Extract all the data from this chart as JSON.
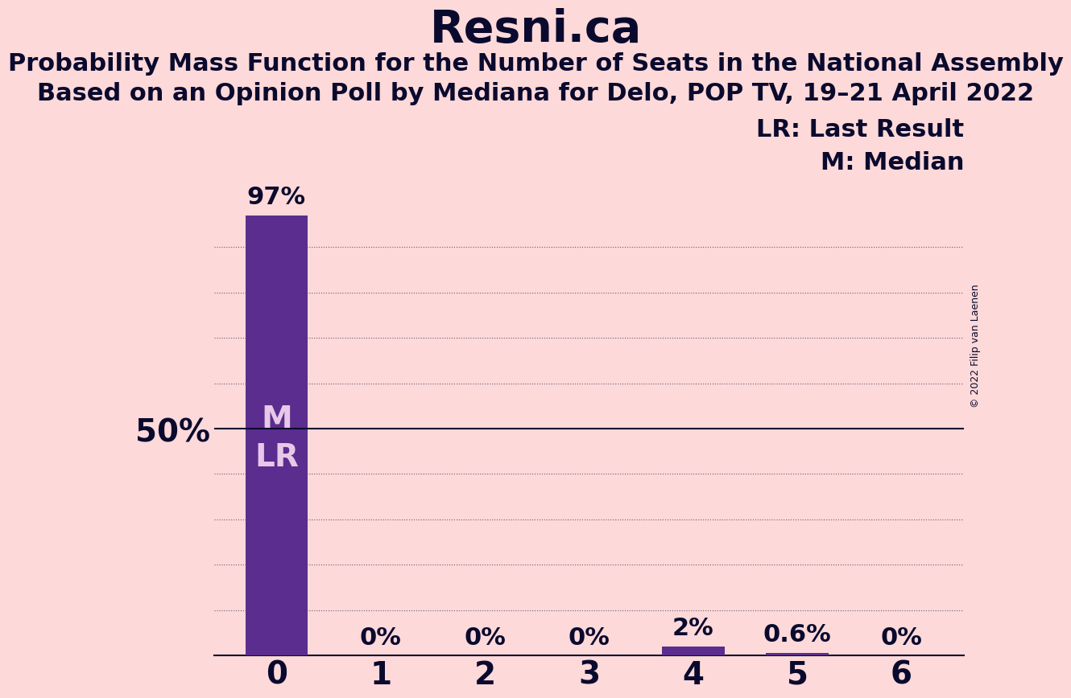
{
  "title": "Resni.ca",
  "subtitle1": "Probability Mass Function for the Number of Seats in the National Assembly",
  "subtitle2": "Based on an Opinion Poll by Mediana for Delo, POP TV, 19–21 April 2022",
  "copyright": "© 2022 Filip van Laenen",
  "categories": [
    0,
    1,
    2,
    3,
    4,
    5,
    6
  ],
  "values": [
    97,
    0,
    0,
    0,
    2,
    0.6,
    0
  ],
  "bar_labels": [
    "97%",
    "0%",
    "0%",
    "0%",
    "2%",
    "0.6%",
    "0%"
  ],
  "bar_color": "#5b2d8e",
  "bar_color_light": "#9b59b6",
  "background_color": "#fdd9d9",
  "text_color": "#0a0a2e",
  "median_seat": 0,
  "last_result_seat": 0,
  "fifty_pct_line": 50,
  "ylim": [
    0,
    105
  ],
  "ytick_label": "50%",
  "ytick_value": 50,
  "legend_lr": "LR: Last Result",
  "legend_m": "M: Median",
  "bar_width": 0.6
}
